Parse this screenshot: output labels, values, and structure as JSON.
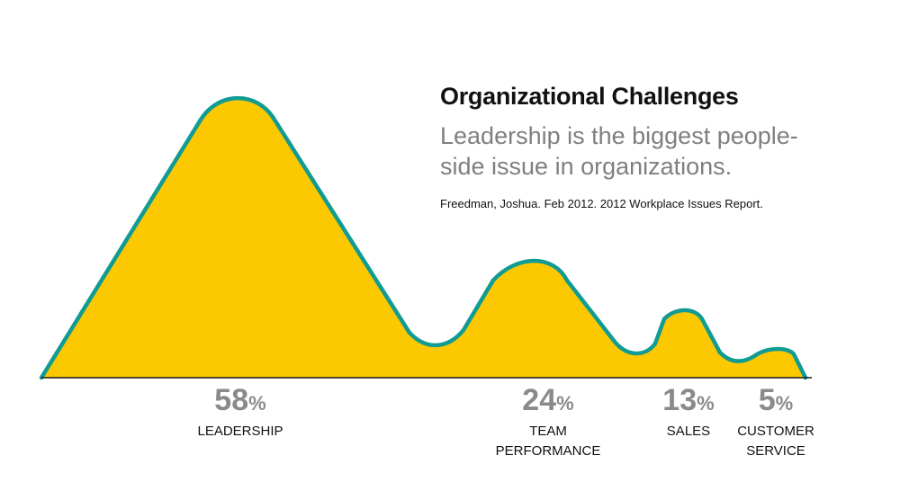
{
  "chart_data": {
    "type": "area",
    "title": "Organizational Challenges",
    "subtitle": "Leadership is the biggest people-side issue in organizations.",
    "source": "Freedman, Joshua. Feb 2012. 2012 Workplace Issues Report.",
    "categories": [
      {
        "percent": "58",
        "label_lines": [
          "LEADERSHIP"
        ]
      },
      {
        "percent": "24",
        "label_lines": [
          "TEAM",
          "PERFORMANCE"
        ]
      },
      {
        "percent": "13",
        "label_lines": [
          "SALES"
        ]
      },
      {
        "percent": "5",
        "label_lines": [
          "CUSTOMER",
          "SERVICE"
        ]
      }
    ],
    "values": [
      58,
      24,
      13,
      5
    ],
    "percent_symbol": "%",
    "colors": {
      "fill": "#fcc800",
      "outline": "#109b93",
      "baseline": "#1a1a1a"
    }
  }
}
